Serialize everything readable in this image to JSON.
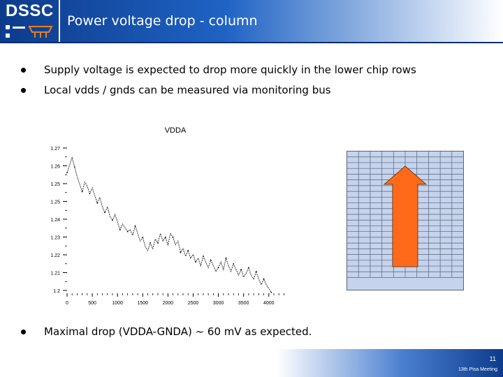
{
  "header": {
    "logo_text": "DSSC",
    "title": "Power voltage drop - column",
    "brand_color": "#1f63c4",
    "logo_accent_color": "#e8801e"
  },
  "bullets": [
    "Supply voltage is expected to drop more quickly in the lower chip rows",
    "Local vdds / gnds can be measured via monitoring bus",
    "Maximal drop (VDDA-GNDA) ~ 60 mV as expected."
  ],
  "chart_data": {
    "type": "line",
    "title": "VDDA",
    "xlabel": "",
    "ylabel": "",
    "xlim": [
      0,
      4100
    ],
    "ylim": [
      1.2,
      1.275
    ],
    "xticks": [
      "0",
      "500",
      "1000",
      "1500",
      "2000",
      "2500",
      "3000",
      "3500",
      "4000"
    ],
    "yticks": [
      "1.2",
      "1.21",
      "1.22",
      "1.23",
      "1.24",
      "1.25",
      "1.25",
      "1.26",
      "1.27"
    ],
    "series": [
      {
        "name": "VDDA",
        "x": [
          0,
          50,
          100,
          150,
          200,
          250,
          300,
          350,
          400,
          450,
          500,
          550,
          600,
          650,
          700,
          750,
          800,
          850,
          900,
          950,
          1000,
          1050,
          1100,
          1150,
          1200,
          1250,
          1300,
          1350,
          1400,
          1450,
          1500,
          1550,
          1600,
          1650,
          1700,
          1750,
          1800,
          1850,
          1900,
          1950,
          2000,
          2050,
          2100,
          2150,
          2200,
          2250,
          2300,
          2350,
          2400,
          2450,
          2500,
          2550,
          2600,
          2650,
          2700,
          2750,
          2800,
          2850,
          2900,
          2950,
          3000,
          3050,
          3100,
          3150,
          3200,
          3250,
          3300,
          3350,
          3400,
          3450,
          3500,
          3550,
          3600,
          3650,
          3700,
          3750,
          3800,
          3850,
          3900,
          3950,
          4000,
          4050
        ],
        "y": [
          1.262,
          1.266,
          1.27,
          1.265,
          1.26,
          1.256,
          1.252,
          1.257,
          1.255,
          1.251,
          1.254,
          1.25,
          1.246,
          1.249,
          1.244,
          1.241,
          1.244,
          1.239,
          1.237,
          1.24,
          1.236,
          1.232,
          1.235,
          1.233,
          1.231,
          1.232,
          1.229,
          1.234,
          1.23,
          1.226,
          1.228,
          1.223,
          1.221,
          1.225,
          1.222,
          1.227,
          1.225,
          1.23,
          1.226,
          1.228,
          1.224,
          1.23,
          1.228,
          1.224,
          1.226,
          1.22,
          1.222,
          1.218,
          1.221,
          1.217,
          1.219,
          1.215,
          1.217,
          1.213,
          1.218,
          1.215,
          1.212,
          1.216,
          1.213,
          1.21,
          1.212,
          1.215,
          1.211,
          1.217,
          1.213,
          1.21,
          1.214,
          1.211,
          1.208,
          1.211,
          1.207,
          1.209,
          1.212,
          1.208,
          1.206,
          1.21,
          1.206,
          1.203,
          1.206,
          1.203,
          1.201,
          1.199
        ]
      }
    ]
  },
  "diagram": {
    "grid_color": "#c5d3ec",
    "grid_line_color": "#55637a",
    "arrow_color": "#ff6a1a",
    "arrow_outline_color": "#7a3a10"
  },
  "footer": {
    "page_number": "11",
    "meeting": "13th Pisa Meeting"
  }
}
